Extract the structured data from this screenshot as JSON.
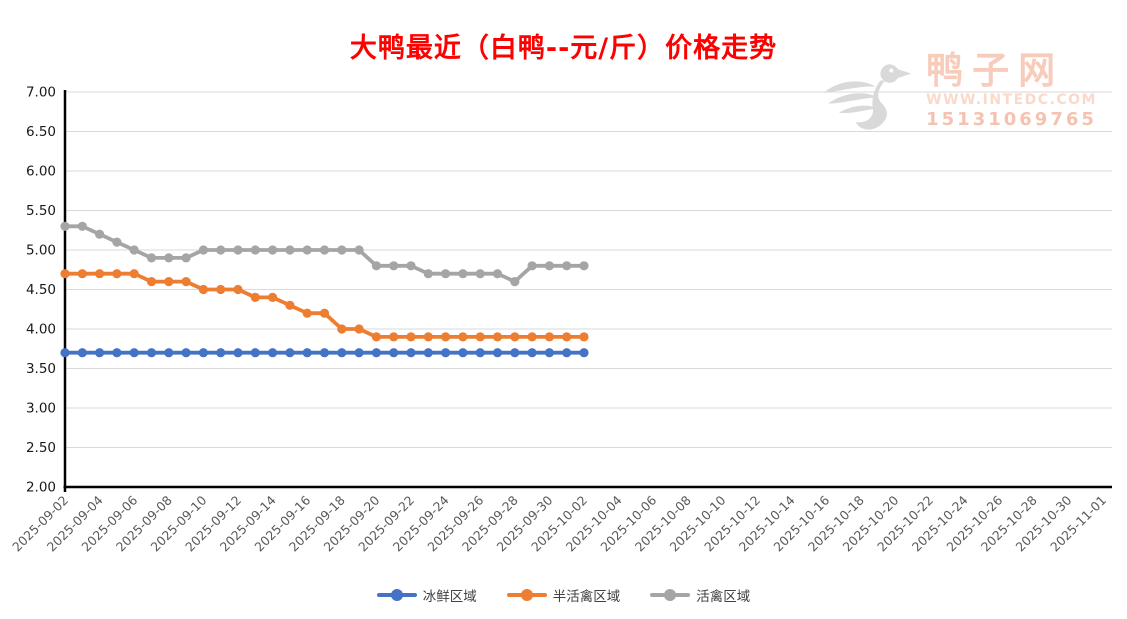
{
  "title": "大鸭最近（白鸭--元/斤）价格走势",
  "watermark": {
    "site_name": "鸭子网",
    "url": "WWW.INTEDC.COM",
    "phone": "15131069765"
  },
  "colors": {
    "title": "#fe0000",
    "axis": "#000000",
    "gridline": "#d9d9d9",
    "y_tick_text": "#1a1a1a",
    "x_tick_text": "#595959",
    "legend_text": "#404040",
    "watermark_text": "#f8ccbb",
    "watermark_duck": "#d9d9d9"
  },
  "chart_data": {
    "type": "line",
    "title": "大鸭最近（白鸭--元/斤）价格走势",
    "ylim": [
      2.0,
      7.0
    ],
    "y_ticks": [
      "7.00",
      "6.50",
      "6.00",
      "5.50",
      "5.00",
      "4.50",
      "4.00",
      "3.50",
      "3.00",
      "2.50",
      "2.00"
    ],
    "grid": true,
    "legend_position": "bottom",
    "x_axis_total_categories": 61,
    "x_tick_labels": [
      "2025-09-02",
      "2025-09-04",
      "2025-09-06",
      "2025-09-08",
      "2025-09-10",
      "2025-09-12",
      "2025-09-14",
      "2025-09-16",
      "2025-09-18",
      "2025-09-20",
      "2025-09-22",
      "2025-09-24",
      "2025-09-26",
      "2025-09-28",
      "2025-09-30",
      "2025-10-02",
      "2025-10-04",
      "2025-10-06",
      "2025-10-08",
      "2025-10-10",
      "2025-10-12",
      "2025-10-14",
      "2025-10-16",
      "2025-10-18",
      "2025-10-20",
      "2025-10-22",
      "2025-10-24",
      "2025-10-26",
      "2025-10-28",
      "2025-10-30",
      "2025-11-01"
    ],
    "data_dates": [
      "2025-09-02",
      "2025-09-03",
      "2025-09-04",
      "2025-09-05",
      "2025-09-06",
      "2025-09-07",
      "2025-09-08",
      "2025-09-09",
      "2025-09-10",
      "2025-09-11",
      "2025-09-12",
      "2025-09-13",
      "2025-09-14",
      "2025-09-15",
      "2025-09-16",
      "2025-09-17",
      "2025-09-18",
      "2025-09-19",
      "2025-09-20",
      "2025-09-21",
      "2025-09-22",
      "2025-09-23",
      "2025-09-24",
      "2025-09-25",
      "2025-09-26",
      "2025-09-27",
      "2025-09-28",
      "2025-09-29",
      "2025-09-30",
      "2025-10-01",
      "2025-10-02"
    ],
    "series": [
      {
        "name": "冰鲜区域",
        "color": "#4472c4",
        "values": [
          3.7,
          3.7,
          3.7,
          3.7,
          3.7,
          3.7,
          3.7,
          3.7,
          3.7,
          3.7,
          3.7,
          3.7,
          3.7,
          3.7,
          3.7,
          3.7,
          3.7,
          3.7,
          3.7,
          3.7,
          3.7,
          3.7,
          3.7,
          3.7,
          3.7,
          3.7,
          3.7,
          3.7,
          3.7,
          3.7,
          3.7
        ]
      },
      {
        "name": "半活禽区域",
        "color": "#ed7d31",
        "values": [
          4.7,
          4.7,
          4.7,
          4.7,
          4.7,
          4.6,
          4.6,
          4.6,
          4.5,
          4.5,
          4.5,
          4.4,
          4.4,
          4.3,
          4.2,
          4.2,
          4.0,
          4.0,
          3.9,
          3.9,
          3.9,
          3.9,
          3.9,
          3.9,
          3.9,
          3.9,
          3.9,
          3.9,
          3.9,
          3.9,
          3.9
        ]
      },
      {
        "name": "活禽区域",
        "color": "#a5a5a5",
        "values": [
          5.3,
          5.3,
          5.2,
          5.1,
          5.0,
          4.9,
          4.9,
          4.9,
          5.0,
          5.0,
          5.0,
          5.0,
          5.0,
          5.0,
          5.0,
          5.0,
          5.0,
          5.0,
          4.8,
          4.8,
          4.8,
          4.7,
          4.7,
          4.7,
          4.7,
          4.7,
          4.6,
          4.8,
          4.8,
          4.8,
          4.8
        ]
      }
    ]
  }
}
